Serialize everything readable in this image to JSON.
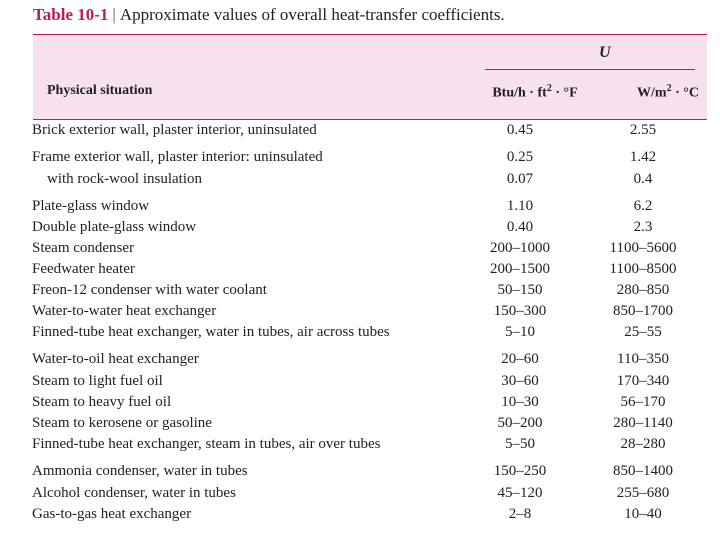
{
  "title": {
    "number": "Table 10-1",
    "separator": "|",
    "text": "Approximate values of overall heat-transfer coefficients."
  },
  "header": {
    "u_symbol": "U",
    "physical_situation": "Physical situation",
    "unit_btu": "Btu/h · ft",
    "unit_btu_exp": "2",
    "unit_btu_tail": " · °F",
    "unit_si": "W/m",
    "unit_si_exp": "2",
    "unit_si_tail": " · °C"
  },
  "rows": [
    {
      "situation": "Brick exterior wall, plaster interior, uninsulated",
      "btu": "0.45",
      "si": "2.55"
    },
    {
      "situation": "Frame exterior wall, plaster interior: uninsulated",
      "btu": "0.25",
      "si": "1.42"
    },
    {
      "situation": "with rock-wool insulation",
      "btu": "0.07",
      "si": "0.4"
    },
    {
      "situation": "Plate-glass window",
      "btu": "1.10",
      "si": "6.2"
    },
    {
      "situation": "Double plate-glass window",
      "btu": "0.40",
      "si": "2.3"
    },
    {
      "situation": "Steam condenser",
      "btu": "200–1000",
      "si": "1100–5600"
    },
    {
      "situation": "Feedwater heater",
      "btu": "200–1500",
      "si": "1100–8500"
    },
    {
      "situation": "Freon-12 condenser with water coolant",
      "btu": "50–150",
      "si": "280–850"
    },
    {
      "situation": "Water-to-water heat exchanger",
      "btu": "150–300",
      "si": "850–1700"
    },
    {
      "situation": "Finned-tube heat exchanger, water in tubes, air across tubes",
      "btu": "5–10",
      "si": "25–55"
    },
    {
      "situation": "Water-to-oil heat exchanger",
      "btu": "20–60",
      "si": "110–350"
    },
    {
      "situation": "Steam to light fuel oil",
      "btu": "30–60",
      "si": "170–340"
    },
    {
      "situation": "Steam to heavy fuel oil",
      "btu": "10–30",
      "si": "56–170"
    },
    {
      "situation": "Steam to kerosene or gasoline",
      "btu": "50–200",
      "si": "280–1140"
    },
    {
      "situation": "Finned-tube heat exchanger, steam in tubes, air over tubes",
      "btu": "5–50",
      "si": "28–280"
    },
    {
      "situation": "Ammonia condenser, water in tubes",
      "btu": "150–250",
      "si": "850–1400"
    },
    {
      "situation": "Alcohol condenser, water in tubes",
      "btu": "45–120",
      "si": "255–680"
    },
    {
      "situation": "Gas-to-gas heat exchanger",
      "btu": "2–8",
      "si": "10–40"
    }
  ]
}
